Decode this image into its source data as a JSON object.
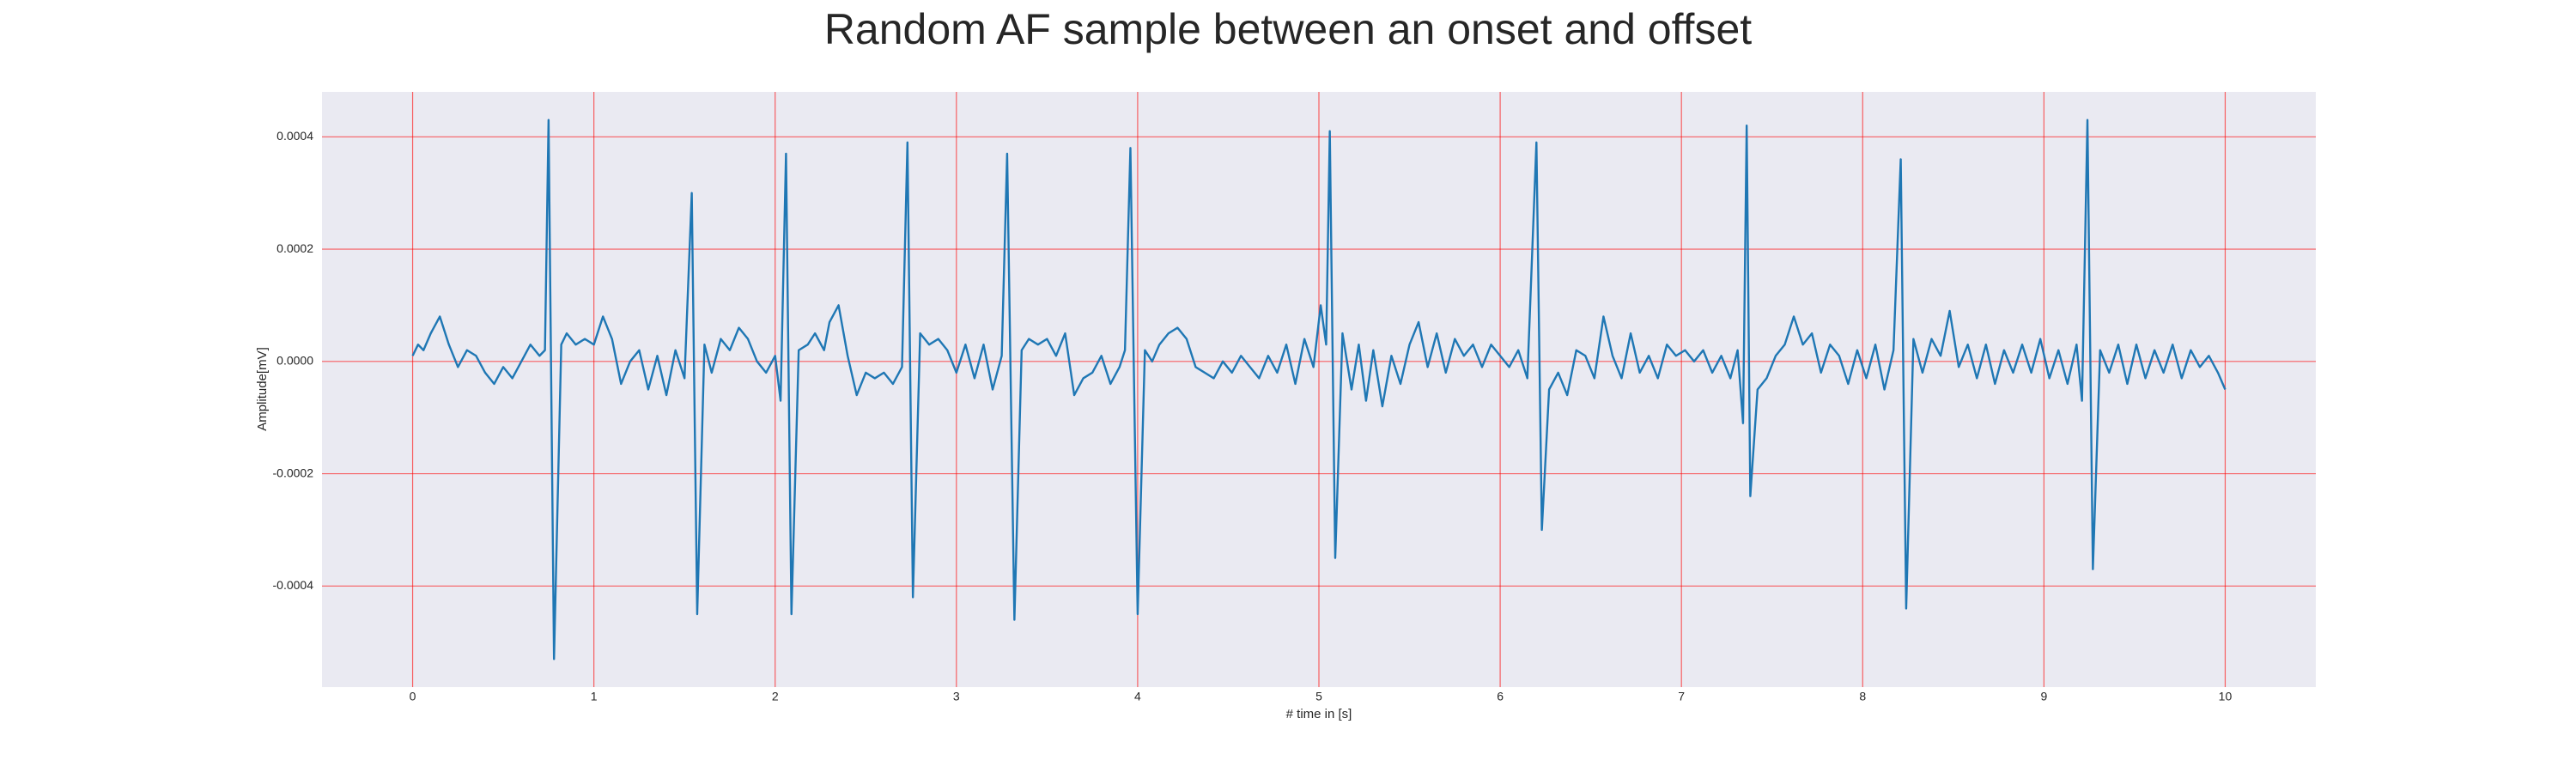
{
  "chart_data": {
    "type": "line",
    "title": "Random AF sample between an onset and offset",
    "xlabel": "# time in [s]",
    "ylabel": "Amplitude[mV]",
    "color": "#1f77b4",
    "grid": true,
    "grid_color": "#ff0000",
    "background": "#eaeaf2",
    "xlim": [
      -0.5,
      10.5
    ],
    "xticks": [
      0,
      1,
      2,
      3,
      4,
      5,
      6,
      7,
      8,
      9,
      10
    ],
    "ylim": [
      -0.00058,
      0.00048
    ],
    "yticks": [
      -0.0004,
      -0.0002,
      {
        "value": 0,
        "label": "0.0000"
      },
      0.0002,
      0.0004
    ],
    "x": [
      0.0,
      0.03,
      0.06,
      0.1,
      0.15,
      0.2,
      0.25,
      0.3,
      0.35,
      0.4,
      0.45,
      0.5,
      0.55,
      0.6,
      0.65,
      0.7,
      0.73,
      0.75,
      0.78,
      0.82,
      0.85,
      0.9,
      0.95,
      1.0,
      1.05,
      1.1,
      1.15,
      1.2,
      1.25,
      1.3,
      1.35,
      1.4,
      1.45,
      1.5,
      1.54,
      1.57,
      1.61,
      1.65,
      1.7,
      1.75,
      1.8,
      1.85,
      1.9,
      1.95,
      2.0,
      2.03,
      2.06,
      2.09,
      2.13,
      2.18,
      2.22,
      2.27,
      2.3,
      2.35,
      2.4,
      2.45,
      2.5,
      2.55,
      2.6,
      2.65,
      2.7,
      2.73,
      2.76,
      2.8,
      2.85,
      2.9,
      2.95,
      3.0,
      3.05,
      3.1,
      3.15,
      3.2,
      3.25,
      3.28,
      3.32,
      3.36,
      3.4,
      3.45,
      3.5,
      3.55,
      3.6,
      3.65,
      3.7,
      3.75,
      3.8,
      3.85,
      3.9,
      3.93,
      3.96,
      4.0,
      4.04,
      4.08,
      4.12,
      4.17,
      4.22,
      4.27,
      4.32,
      4.37,
      4.42,
      4.47,
      4.52,
      4.57,
      4.62,
      4.67,
      4.72,
      4.77,
      4.82,
      4.87,
      4.92,
      4.97,
      5.01,
      5.04,
      5.06,
      5.09,
      5.13,
      5.18,
      5.22,
      5.26,
      5.3,
      5.35,
      5.4,
      5.45,
      5.5,
      5.55,
      5.6,
      5.65,
      5.7,
      5.75,
      5.8,
      5.85,
      5.9,
      5.95,
      6.0,
      6.05,
      6.1,
      6.15,
      6.2,
      6.23,
      6.27,
      6.32,
      6.37,
      6.42,
      6.47,
      6.52,
      6.57,
      6.62,
      6.67,
      6.72,
      6.77,
      6.82,
      6.87,
      6.92,
      6.97,
      7.02,
      7.07,
      7.12,
      7.17,
      7.22,
      7.27,
      7.31,
      7.34,
      7.36,
      7.38,
      7.42,
      7.47,
      7.52,
      7.57,
      7.62,
      7.67,
      7.72,
      7.77,
      7.82,
      7.87,
      7.92,
      7.97,
      8.02,
      8.07,
      8.12,
      8.17,
      8.21,
      8.24,
      8.28,
      8.33,
      8.38,
      8.43,
      8.48,
      8.53,
      8.58,
      8.63,
      8.68,
      8.73,
      8.78,
      8.83,
      8.88,
      8.93,
      8.98,
      9.03,
      9.08,
      9.13,
      9.18,
      9.21,
      9.24,
      9.27,
      9.31,
      9.36,
      9.41,
      9.46,
      9.51,
      9.56,
      9.61,
      9.66,
      9.71,
      9.76,
      9.81,
      9.86,
      9.91,
      9.96,
      10.0
    ],
    "values": [
      1e-05,
      3e-05,
      2e-05,
      5e-05,
      8e-05,
      3e-05,
      -1e-05,
      2e-05,
      1e-05,
      -2e-05,
      -4e-05,
      -1e-05,
      -3e-05,
      0.0,
      3e-05,
      1e-05,
      2e-05,
      0.00043,
      -0.00053,
      3e-05,
      5e-05,
      3e-05,
      4e-05,
      3e-05,
      8e-05,
      4e-05,
      -4e-05,
      0.0,
      2e-05,
      -5e-05,
      1e-05,
      -6e-05,
      2e-05,
      -3e-05,
      0.0003,
      -0.00045,
      3e-05,
      -2e-05,
      4e-05,
      2e-05,
      6e-05,
      4e-05,
      0.0,
      -2e-05,
      1e-05,
      -7e-05,
      0.00037,
      -0.00045,
      2e-05,
      3e-05,
      5e-05,
      2e-05,
      7e-05,
      0.0001,
      1e-05,
      -6e-05,
      -2e-05,
      -3e-05,
      -2e-05,
      -4e-05,
      -1e-05,
      0.00039,
      -0.00042,
      5e-05,
      3e-05,
      4e-05,
      2e-05,
      -2e-05,
      3e-05,
      -3e-05,
      3e-05,
      -5e-05,
      1e-05,
      0.00037,
      -0.00046,
      2e-05,
      4e-05,
      3e-05,
      4e-05,
      1e-05,
      5e-05,
      -6e-05,
      -3e-05,
      -2e-05,
      1e-05,
      -4e-05,
      -1e-05,
      2e-05,
      0.00038,
      -0.00045,
      2e-05,
      0.0,
      3e-05,
      5e-05,
      6e-05,
      4e-05,
      -1e-05,
      -2e-05,
      -3e-05,
      0.0,
      -2e-05,
      1e-05,
      -1e-05,
      -3e-05,
      1e-05,
      -2e-05,
      3e-05,
      -4e-05,
      4e-05,
      -1e-05,
      0.0001,
      3e-05,
      0.00041,
      -0.00035,
      5e-05,
      -5e-05,
      3e-05,
      -7e-05,
      2e-05,
      -8e-05,
      1e-05,
      -4e-05,
      3e-05,
      7e-05,
      -1e-05,
      5e-05,
      -2e-05,
      4e-05,
      1e-05,
      3e-05,
      -1e-05,
      3e-05,
      1e-05,
      -1e-05,
      2e-05,
      -3e-05,
      0.00039,
      -0.0003,
      -5e-05,
      -2e-05,
      -6e-05,
      2e-05,
      1e-05,
      -3e-05,
      8e-05,
      1e-05,
      -3e-05,
      5e-05,
      -2e-05,
      1e-05,
      -3e-05,
      3e-05,
      1e-05,
      2e-05,
      0.0,
      2e-05,
      -2e-05,
      1e-05,
      -3e-05,
      2e-05,
      -0.00011,
      0.00042,
      -0.00024,
      -5e-05,
      -3e-05,
      1e-05,
      3e-05,
      8e-05,
      3e-05,
      5e-05,
      -2e-05,
      3e-05,
      1e-05,
      -4e-05,
      2e-05,
      -3e-05,
      3e-05,
      -5e-05,
      2e-05,
      0.00036,
      -0.00044,
      4e-05,
      -2e-05,
      4e-05,
      1e-05,
      9e-05,
      -1e-05,
      3e-05,
      -3e-05,
      3e-05,
      -4e-05,
      2e-05,
      -2e-05,
      3e-05,
      -2e-05,
      4e-05,
      -3e-05,
      2e-05,
      -4e-05,
      3e-05,
      -7e-05,
      0.00043,
      -0.00037,
      2e-05,
      -2e-05,
      3e-05,
      -4e-05,
      3e-05,
      -3e-05,
      2e-05,
      -2e-05,
      3e-05,
      -3e-05,
      2e-05,
      -1e-05,
      1e-05,
      -2e-05,
      -5e-05
    ]
  }
}
